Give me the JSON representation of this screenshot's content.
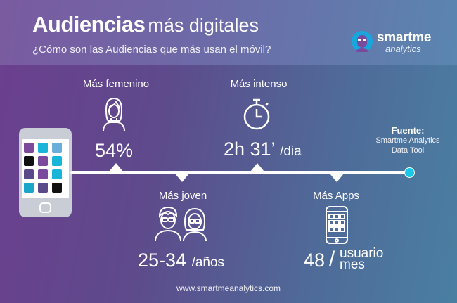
{
  "header": {
    "title_bold": "Audiencias",
    "title_light": "más digitales",
    "subtitle": "¿Cómo son las Audiencias que más usan el móvil?"
  },
  "logo": {
    "name": "smartme",
    "sub": "analytics"
  },
  "stats": {
    "feminine": {
      "label": "Más femenino",
      "value": "54%",
      "icon": "woman-icon"
    },
    "intense": {
      "label": "Más intenso",
      "value": "2h 31’",
      "unit": "/dia",
      "icon": "stopwatch-icon"
    },
    "young": {
      "label": "Más joven",
      "value": "25-34",
      "unit": "/años",
      "icon": "young-couple-icon"
    },
    "apps": {
      "label": "Más Apps",
      "value": "48",
      "unit_top": "usuario",
      "unit_bottom": "mes",
      "icon": "smartphone-apps-icon"
    }
  },
  "source": {
    "title": "Fuente:",
    "line1": "Smartme Analytics",
    "line2": "Data Tool"
  },
  "footer": {
    "url": "www.smartmeanalytics.com"
  },
  "colors": {
    "accent": "#19c7e8",
    "gradient_start": "#6c3f8e",
    "gradient_end": "#4a7fa2"
  }
}
